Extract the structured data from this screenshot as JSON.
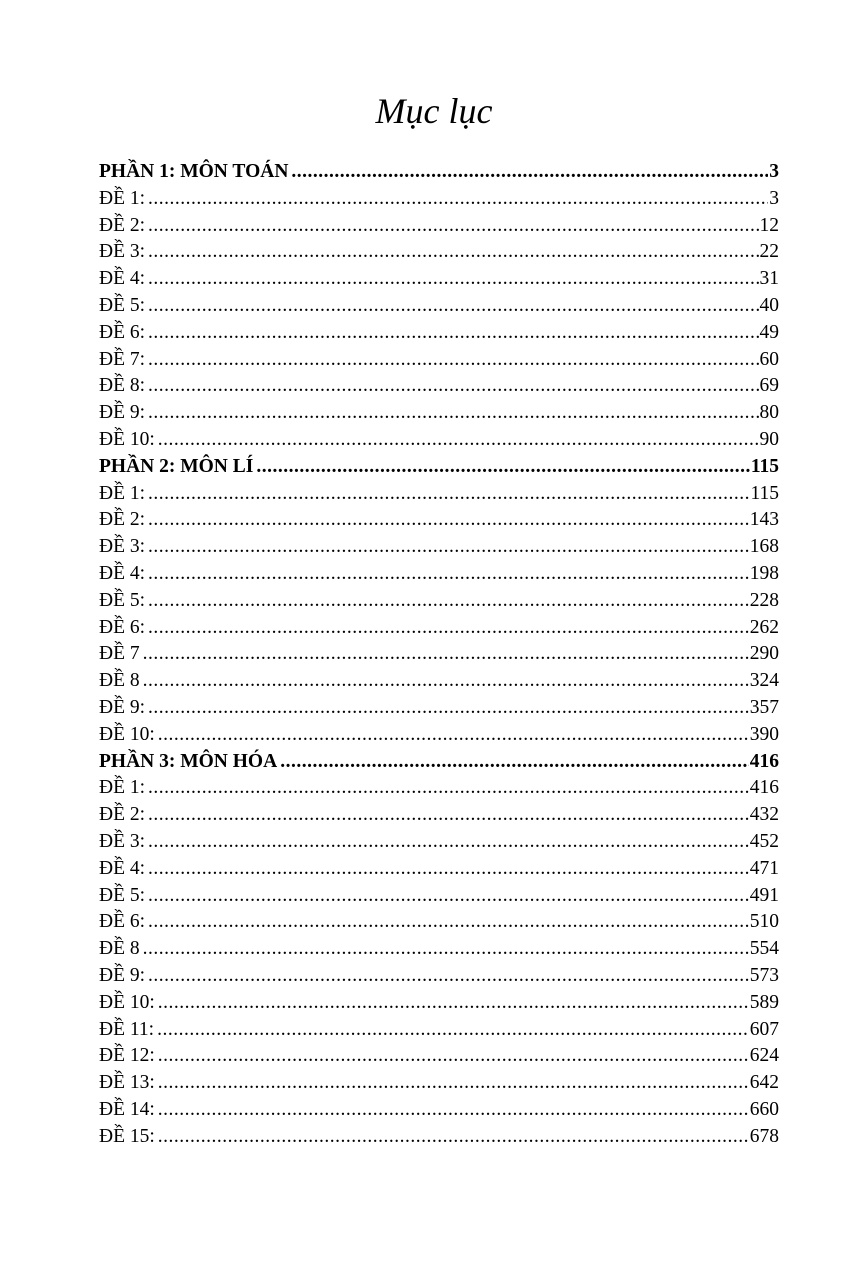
{
  "title": "Mục lục",
  "entries": [
    {
      "label": "PHẦN 1: MÔN TOÁN",
      "page": "3",
      "bold": true
    },
    {
      "label": "ĐỀ 1:",
      "page": "3"
    },
    {
      "label": "ĐỀ 2:",
      "page": "12"
    },
    {
      "label": "ĐỀ 3:",
      "page": "22"
    },
    {
      "label": "ĐỀ 4:",
      "page": "31"
    },
    {
      "label": "ĐỀ 5:",
      "page": "40"
    },
    {
      "label": "ĐỀ 6:",
      "page": "49"
    },
    {
      "label": "ĐỀ 7:",
      "page": "60"
    },
    {
      "label": "ĐỀ 8:",
      "page": "69"
    },
    {
      "label": "ĐỀ 9:",
      "page": "80"
    },
    {
      "label": "ĐỀ 10:",
      "page": "90"
    },
    {
      "label": "PHẦN 2: MÔN LÍ",
      "page": "115",
      "bold": true
    },
    {
      "label": "ĐỀ 1:",
      "page": "115"
    },
    {
      "label": "ĐỀ 2:",
      "page": "143"
    },
    {
      "label": "ĐỀ 3:",
      "page": "168"
    },
    {
      "label": "ĐỀ 4:",
      "page": "198"
    },
    {
      "label": "ĐỀ 5:",
      "page": "228"
    },
    {
      "label": "ĐỀ 6:",
      "page": "262"
    },
    {
      "label": "ĐỀ 7",
      "page": "290"
    },
    {
      "label": "ĐỀ 8",
      "page": "324"
    },
    {
      "label": "ĐỀ 9:",
      "page": "357"
    },
    {
      "label": "ĐỀ 10:",
      "page": "390"
    },
    {
      "label": "PHẦN 3: MÔN HÓA",
      "page": "416",
      "bold": true
    },
    {
      "label": "ĐỀ 1:",
      "page": "416"
    },
    {
      "label": "ĐỀ 2:",
      "page": "432"
    },
    {
      "label": "ĐỀ 3:",
      "page": "452"
    },
    {
      "label": "ĐỀ 4:",
      "page": "471"
    },
    {
      "label": "ĐỀ 5:",
      "page": "491"
    },
    {
      "label": "ĐỀ 6:",
      "page": "510"
    },
    {
      "label": "ĐỀ 8",
      "page": "554"
    },
    {
      "label": "ĐỀ 9:",
      "page": "573"
    },
    {
      "label": "ĐỀ 10:",
      "page": "589"
    },
    {
      "label": "ĐỀ 11:",
      "page": "607"
    },
    {
      "label": "ĐỀ 12:",
      "page": "624"
    },
    {
      "label": "ĐỀ 13:",
      "page": "642"
    },
    {
      "label": "ĐỀ 14:",
      "page": "660"
    },
    {
      "label": "ĐỀ 15:",
      "page": "678"
    }
  ]
}
